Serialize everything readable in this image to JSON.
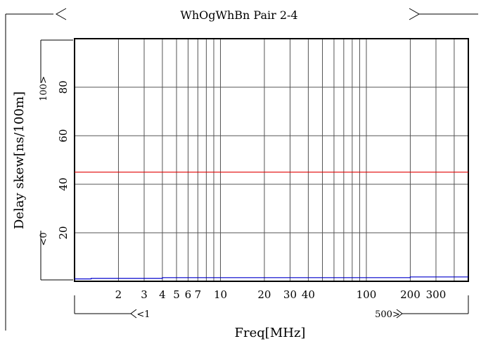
{
  "chart_data": {
    "type": "line",
    "title": "WhOgWhBn Pair 2-4",
    "xlabel": "Freq[MHz]",
    "ylabel": "Delay skew[ns/100m]",
    "x_scale": "log",
    "xlim": [
      1,
      500
    ],
    "ylim": [
      0,
      100
    ],
    "x_range_markers": {
      "start": "<1",
      "end": "500>"
    },
    "y_range_markers": {
      "start": "<0",
      "end": "100>"
    },
    "x_ticks": [
      2,
      3,
      4,
      5,
      6,
      7,
      10,
      20,
      30,
      40,
      100,
      200,
      300
    ],
    "x_tick_labels": [
      "2",
      "3",
      "4",
      "5",
      "6",
      "7",
      "10",
      "20",
      "30",
      "40",
      "100",
      "200",
      "300"
    ],
    "y_ticks": [
      20,
      40,
      60,
      80
    ],
    "y_tick_labels": [
      "20",
      "40",
      "60",
      "80"
    ],
    "grid": true,
    "series": [
      {
        "color": "#e00000",
        "x": [
          1,
          500
        ],
        "y": [
          45,
          45
        ]
      },
      {
        "color": "#0000cc",
        "x": [
          1,
          1.3,
          1.3,
          4,
          4,
          200,
          200,
          500
        ],
        "y": [
          1.0,
          1.0,
          1.2,
          1.2,
          1.5,
          1.5,
          1.8,
          1.8
        ]
      }
    ]
  }
}
